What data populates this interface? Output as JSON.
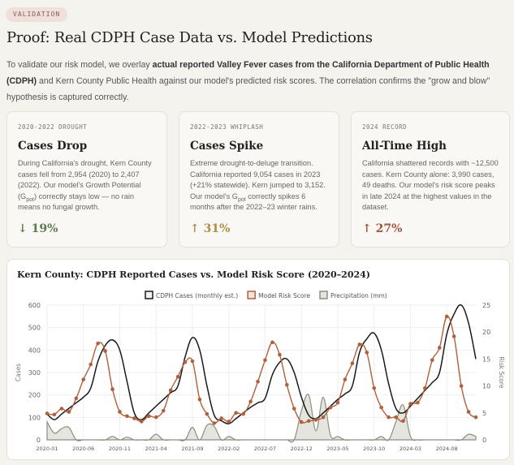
{
  "badge": "VALIDATION",
  "title": "Proof: Real CDPH Case Data vs. Model Predictions",
  "intro": {
    "pre": "To validate our risk model, we overlay ",
    "bold": "actual reported Valley Fever cases from the California Department of Public Health (CDPH)",
    "post": " and Kern County Public Health against our model's predicted risk scores. The correlation confirms the \"grow and blow\" hypothesis is captured correctly."
  },
  "cards": [
    {
      "tag": "2020-2022 DROUGHT",
      "title": "Cases Drop",
      "text_a": "During California's drought, Kern County cases fell from 2,954 (2020) to 2,407 (2022). Our model's Growth Potential (G",
      "sub": "pot",
      "text_b": ") correctly stays low — no rain means no fungal growth.",
      "stat": "↓ 19%",
      "color": "#5f7a50"
    },
    {
      "tag": "2022-2023 WHIPLASH",
      "title": "Cases Spike",
      "text_a": "Extreme drought-to-deluge transition. California reported 9,054 cases in 2023 (+21% statewide). Kern jumped to 3,152. Our model's G",
      "sub": "pot",
      "text_b": " correctly spikes 6 months after the 2022–23 winter rains.",
      "stat": "↑ 31%",
      "color": "#b08a4a"
    },
    {
      "tag": "2024 RECORD",
      "title": "All-Time High",
      "text_a": "California shattered records with ~12,500 cases. Kern County alone: 3,990 cases, 49 deaths. Our model's risk score peaks in late 2024 at the highest values in the dataset.",
      "sub": "",
      "text_b": "",
      "stat": "↑ 27%",
      "color": "#a0553f"
    }
  ],
  "chart_data": {
    "type": "line",
    "title": "Kern County: CDPH Reported Cases vs. Model Risk Score (2020–2024)",
    "ylabel": "Cases",
    "y2label": "Risk Score",
    "ylim": [
      0,
      600
    ],
    "y2lim": [
      0,
      25
    ],
    "yticks": [
      0,
      100,
      200,
      300,
      400,
      500,
      600
    ],
    "y2ticks": [
      0,
      5,
      10,
      15,
      20,
      25
    ],
    "xticks": [
      "2020-01",
      "2020-06",
      "2020-11",
      "2021-04",
      "2021-09",
      "2022-02",
      "2022-07",
      "2022-12",
      "2023-05",
      "2023-10",
      "2024-03",
      "2024-08"
    ],
    "start": "2020-01",
    "months": 60,
    "grid": true,
    "legend": "top",
    "series": [
      {
        "name": "CDPH Cases (monthly est.)",
        "axis": "left",
        "color": "#1a1a1a",
        "values": [
          115,
          90,
          115,
          140,
          165,
          190,
          230,
          350,
          420,
          445,
          400,
          260,
          120,
          90,
          120,
          150,
          180,
          210,
          240,
          370,
          455,
          400,
          240,
          110,
          85,
          72,
          95,
          120,
          145,
          165,
          185,
          290,
          345,
          360,
          300,
          190,
          110,
          95,
          120,
          150,
          180,
          205,
          240,
          390,
          450,
          475,
          400,
          250,
          140,
          120,
          150,
          185,
          220,
          255,
          300,
          470,
          560,
          600,
          520,
          360
        ]
      },
      {
        "name": "Model Risk Score",
        "axis": "right",
        "color": "#b0603c",
        "values": [
          4.9,
          4.7,
          5.8,
          5.2,
          7.7,
          11.2,
          14,
          17.9,
          16.5,
          9.4,
          5.2,
          4.4,
          4.0,
          3.4,
          4.4,
          4.2,
          5.4,
          9.2,
          11.7,
          14.4,
          14.6,
          7.5,
          4.8,
          3.1,
          4.0,
          3.4,
          5.0,
          4.8,
          7.1,
          10.8,
          14.8,
          18.1,
          15.8,
          10.2,
          5.8,
          3.3,
          3.5,
          3.7,
          4.2,
          6.0,
          6.9,
          11.2,
          14.2,
          17.7,
          16.2,
          9.6,
          6.0,
          4.2,
          4.2,
          3.5,
          6.7,
          6.9,
          9.6,
          14.8,
          17.1,
          22.9,
          19.2,
          10.0,
          5.2,
          4.2
        ]
      },
      {
        "name": "Precipitation (mm)",
        "axis": "left",
        "color": "#8a9080",
        "fill": "#e3e5de",
        "values": [
          80,
          30,
          50,
          55,
          0,
          0,
          0,
          0,
          0,
          15,
          0,
          12,
          0,
          0,
          0,
          25,
          0,
          0,
          0,
          0,
          55,
          0,
          65,
          60,
          0,
          15,
          0,
          0,
          0,
          0,
          0,
          0,
          0,
          0,
          0,
          130,
          200,
          40,
          190,
          20,
          15,
          0,
          0,
          0,
          0,
          0,
          15,
          0,
          80,
          155,
          15,
          0,
          0,
          0,
          0,
          0,
          0,
          0,
          25,
          15
        ]
      }
    ]
  }
}
